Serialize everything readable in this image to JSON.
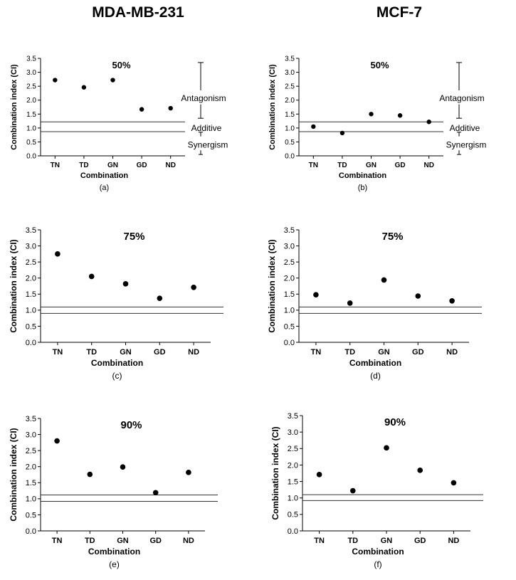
{
  "column_titles": [
    "MDA-MB-231",
    "MCF-7"
  ],
  "region_labels": {
    "antagonism": "Antagonism",
    "additive": "Additive",
    "synergism": "Synergism"
  },
  "chart_data": [
    {
      "type": "scatter",
      "panel": "(a)",
      "title": "50%",
      "cell_line": "MDA-MB-231",
      "xlabel": "Combination",
      "ylabel": "Combination index (CI)",
      "categories": [
        "TN",
        "TD",
        "GN",
        "GD",
        "ND"
      ],
      "values": [
        2.72,
        2.46,
        2.72,
        1.67,
        1.71
      ],
      "ylim": [
        0,
        3.5
      ],
      "yticks": [
        "0.0",
        "0.5",
        "1.0",
        "1.5",
        "2.0",
        "2.5",
        "3.0",
        "3.5"
      ],
      "reference_lines": [
        0.87,
        1.22
      ],
      "show_regions": true
    },
    {
      "type": "scatter",
      "panel": "(b)",
      "title": "50%",
      "cell_line": "MCF-7",
      "xlabel": "Combination",
      "ylabel": "Combination index (CI)",
      "categories": [
        "TN",
        "TD",
        "GN",
        "GD",
        "ND"
      ],
      "values": [
        1.05,
        0.82,
        1.5,
        1.45,
        1.22
      ],
      "ylim": [
        0,
        3.5
      ],
      "yticks": [
        "0.0",
        "0.5",
        "1.0",
        "1.5",
        "2.0",
        "2.5",
        "3.0",
        "3.5"
      ],
      "reference_lines": [
        0.87,
        1.22
      ],
      "show_regions": true
    },
    {
      "type": "scatter",
      "panel": "(c)",
      "title": "75%",
      "cell_line": "MDA-MB-231",
      "xlabel": "Combination",
      "ylabel": "Combination index (CI)",
      "categories": [
        "TN",
        "TD",
        "GN",
        "GD",
        "ND"
      ],
      "values": [
        2.75,
        2.05,
        1.82,
        1.37,
        1.71
      ],
      "ylim": [
        0,
        3.5
      ],
      "yticks": [
        "0.0",
        "0.5",
        "1.0",
        "1.5",
        "2.0",
        "2.5",
        "3.0",
        "3.5"
      ],
      "reference_lines": [
        0.9,
        1.1
      ],
      "show_regions": false
    },
    {
      "type": "scatter",
      "panel": "(d)",
      "title": "75%",
      "cell_line": "MCF-7",
      "xlabel": "Combination",
      "ylabel": "Combination index (CI)",
      "categories": [
        "TN",
        "TD",
        "GN",
        "GD",
        "ND"
      ],
      "values": [
        1.48,
        1.22,
        1.94,
        1.44,
        1.29
      ],
      "ylim": [
        0,
        3.5
      ],
      "yticks": [
        "0.0",
        "0.5",
        "1.0",
        "1.5",
        "2.0",
        "2.5",
        "3.0",
        "3.5"
      ],
      "reference_lines": [
        0.9,
        1.1
      ],
      "show_regions": false
    },
    {
      "type": "scatter",
      "panel": "(e)",
      "title": "90%",
      "cell_line": "MDA-MB-231",
      "xlabel": "Combination",
      "ylabel": "Combination index (CI)",
      "categories": [
        "TN",
        "TD",
        "GN",
        "GD",
        "ND"
      ],
      "values": [
        2.8,
        1.76,
        1.99,
        1.19,
        1.82
      ],
      "ylim": [
        0,
        3.5
      ],
      "yticks": [
        "0.0",
        "0.5",
        "1.0",
        "1.5",
        "2.0",
        "2.5",
        "3.0",
        "3.5"
      ],
      "reference_lines": [
        0.92,
        1.12
      ],
      "show_regions": false
    },
    {
      "type": "scatter",
      "panel": "(f)",
      "title": "90%",
      "cell_line": "MCF-7",
      "xlabel": "Combination",
      "ylabel": "Combination index (CI)",
      "categories": [
        "TN",
        "TD",
        "GN",
        "GD",
        "ND"
      ],
      "values": [
        1.71,
        1.22,
        2.52,
        1.84,
        1.46
      ],
      "ylim": [
        0,
        3.5
      ],
      "yticks": [
        "0.0",
        "0.5",
        "1.0",
        "1.5",
        "2.0",
        "2.5",
        "3.0",
        "3.5"
      ],
      "reference_lines": [
        0.92,
        1.1
      ],
      "show_regions": false
    }
  ]
}
